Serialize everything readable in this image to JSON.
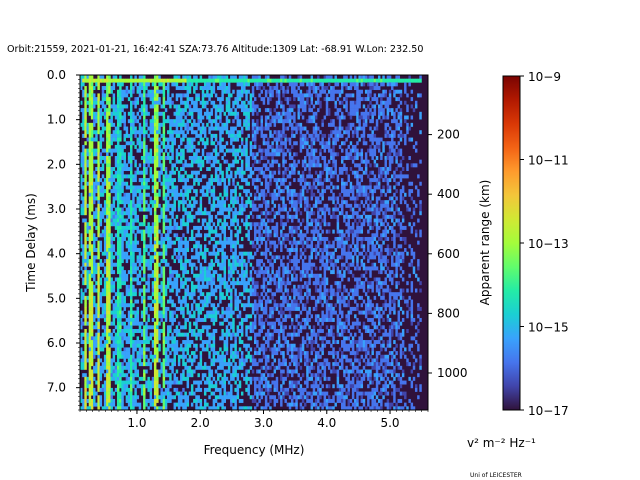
{
  "chart_data": {
    "type": "heatmap",
    "title": "Orbit:21559, 2021-01-21, 16:42:41 SZA:73.76 Altitude:1309 Lat: -68.91 W.Lon: 232.50",
    "xlabel": "Frequency (MHz)",
    "ylabel": "Time Delay (ms)",
    "y2label": "Apparent range (km)",
    "xlim": [
      0.1,
      5.6
    ],
    "ylim": [
      7.5,
      0.0
    ],
    "xticks": [
      {
        "value": 1.0,
        "label": "1.0"
      },
      {
        "value": 2.0,
        "label": "2.0"
      },
      {
        "value": 3.0,
        "label": "3.0"
      },
      {
        "value": 4.0,
        "label": "4.0"
      },
      {
        "value": 5.0,
        "label": "5.0"
      }
    ],
    "yticks": [
      {
        "value": 0.0,
        "label": "0.0"
      },
      {
        "value": 1.0,
        "label": "1.0"
      },
      {
        "value": 2.0,
        "label": "2.0"
      },
      {
        "value": 3.0,
        "label": "3.0"
      },
      {
        "value": 4.0,
        "label": "4.0"
      },
      {
        "value": 5.0,
        "label": "5.0"
      },
      {
        "value": 6.0,
        "label": "6.0"
      },
      {
        "value": 7.0,
        "label": "7.0"
      }
    ],
    "y2ticks": [
      {
        "value": 200,
        "label": "200"
      },
      {
        "value": 400,
        "label": "400"
      },
      {
        "value": 600,
        "label": "600"
      },
      {
        "value": 800,
        "label": "800"
      },
      {
        "value": 1000,
        "label": "1000"
      }
    ],
    "y2_km_per_ms": 149.896,
    "colorbar": {
      "scale": "log",
      "min_exponent": -17,
      "max_exponent": -9,
      "ticks": [
        {
          "exponent": -17,
          "label": "10−17"
        },
        {
          "exponent": -15,
          "label": "10−15"
        },
        {
          "exponent": -13,
          "label": "10−13"
        },
        {
          "exponent": -11,
          "label": "10−11"
        },
        {
          "exponent": -9,
          "label": "10−9"
        }
      ],
      "colormap": [
        "#30123b",
        "#4145ab",
        "#4675ed",
        "#39a2fc",
        "#1bcfd4",
        "#24eca6",
        "#61fc6c",
        "#a4fc3b",
        "#d1e834",
        "#f3c63a",
        "#fe9b2d",
        "#f36315",
        "#d93806",
        "#b11901",
        "#7a0402"
      ],
      "units_label": "v² m⁻² Hz⁻¹"
    },
    "spectrogram": {
      "freq_bins": 160,
      "delay_bins": 91,
      "background_exponent": -17,
      "features": [
        {
          "kind": "surface_reflection",
          "delay_ms": [
            0.05,
            0.2
          ],
          "freq_mhz": [
            0.15,
            5.5
          ],
          "exponent": -13.8
        },
        {
          "kind": "vertical_streak",
          "freq_mhz": 0.18,
          "exponent": -13.0
        },
        {
          "kind": "vertical_streak",
          "freq_mhz": 0.27,
          "exponent": -13.2
        },
        {
          "kind": "vertical_streak",
          "freq_mhz": 0.4,
          "exponent": -13.0
        },
        {
          "kind": "vertical_streak",
          "freq_mhz": 0.55,
          "exponent": -13.2
        },
        {
          "kind": "vertical_streak",
          "freq_mhz": 0.72,
          "exponent": -14.6
        },
        {
          "kind": "vertical_streak",
          "freq_mhz": 0.9,
          "exponent": -14.6
        },
        {
          "kind": "vertical_streak",
          "freq_mhz": 1.12,
          "exponent": -14.0
        },
        {
          "kind": "vertical_streak",
          "freq_mhz": 1.3,
          "exponent": -13.2
        },
        {
          "kind": "vertical_streak",
          "freq_mhz": 1.42,
          "exponent": -14.0
        },
        {
          "kind": "noise_band",
          "freq_mhz": [
            0.1,
            2.8
          ],
          "exponent": -15.3
        },
        {
          "kind": "noise_band",
          "freq_mhz": [
            2.8,
            5.5
          ],
          "exponent": -16.0
        }
      ]
    }
  },
  "footer": "Uni of LEICESTER"
}
